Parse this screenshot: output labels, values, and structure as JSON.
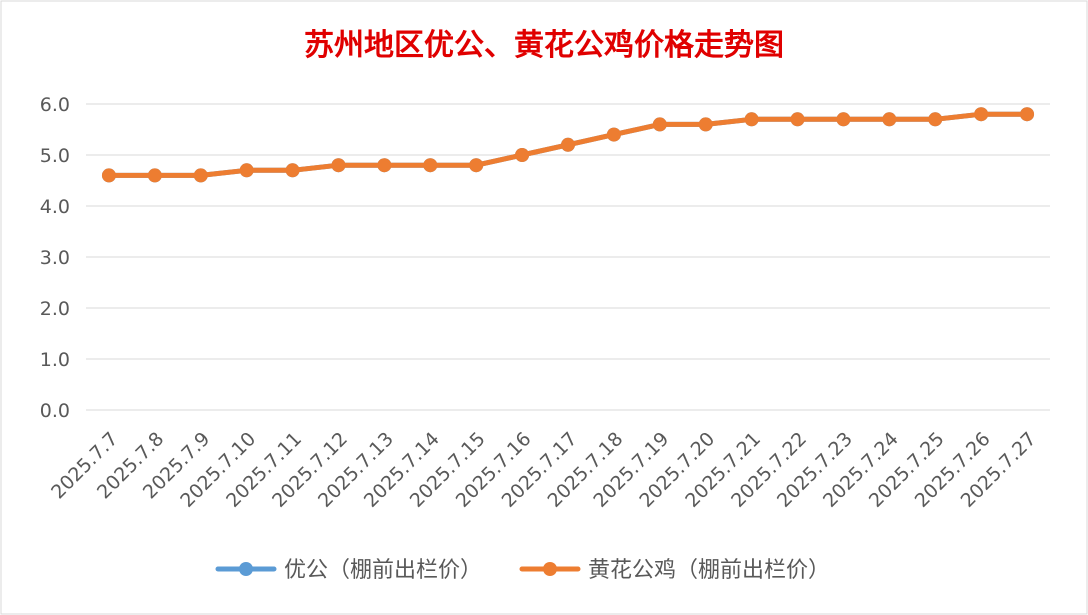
{
  "chart_data": {
    "type": "line",
    "title": "苏州地区优公、黄花公鸡价格走势图",
    "xlabel": "",
    "ylabel": "",
    "ylim": [
      0,
      6
    ],
    "y_ticks": [
      "0.0",
      "1.0",
      "2.0",
      "3.0",
      "4.0",
      "5.0",
      "6.0"
    ],
    "grid": true,
    "legend_position": "bottom",
    "categories": [
      "2025.7.7",
      "2025.7.8",
      "2025.7.9",
      "2025.7.10",
      "2025.7.11",
      "2025.7.12",
      "2025.7.13",
      "2025.7.14",
      "2025.7.15",
      "2025.7.16",
      "2025.7.17",
      "2025.7.18",
      "2025.7.19",
      "2025.7.20",
      "2025.7.21",
      "2025.7.22",
      "2025.7.23",
      "2025.7.24",
      "2025.7.25",
      "2025.7.26",
      "2025.7.27"
    ],
    "series": [
      {
        "name": "优公（棚前出栏价）",
        "color": "#5b9bd5",
        "values": [
          4.6,
          4.6,
          4.6,
          4.7,
          4.7,
          4.8,
          4.8,
          4.8,
          4.8,
          5.0,
          5.2,
          5.4,
          5.6,
          5.6,
          5.7,
          5.7,
          5.7,
          5.7,
          5.7,
          5.8,
          5.8
        ]
      },
      {
        "name": "黄花公鸡（棚前出栏价）",
        "color": "#ed7d31",
        "values": [
          4.6,
          4.6,
          4.6,
          4.7,
          4.7,
          4.8,
          4.8,
          4.8,
          4.8,
          5.0,
          5.2,
          5.4,
          5.6,
          5.6,
          5.7,
          5.7,
          5.7,
          5.7,
          5.7,
          5.8,
          5.8
        ]
      }
    ],
    "title_color": "#e00000"
  }
}
